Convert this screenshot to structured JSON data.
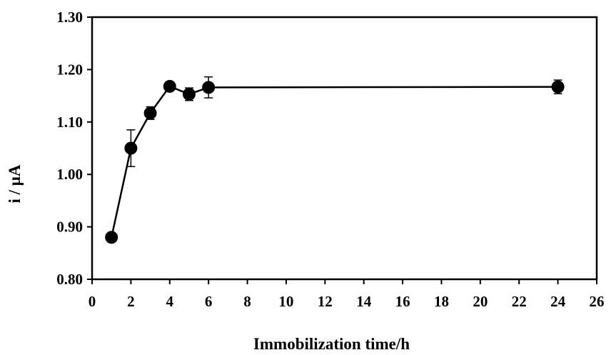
{
  "chart_data": {
    "type": "line",
    "title": "",
    "xlabel": "Immobilization time/h",
    "ylabel": "i / μA",
    "xlim": [
      0,
      26
    ],
    "ylim": [
      0.8,
      1.3
    ],
    "x_ticks": [
      "0",
      "2",
      "4",
      "6",
      "8",
      "10",
      "12",
      "14",
      "16",
      "18",
      "20",
      "22",
      "24",
      "26"
    ],
    "y_ticks": [
      "0.80",
      "0.90",
      "1.00",
      "1.10",
      "1.20",
      "1.30"
    ],
    "grid": false,
    "legend": "none",
    "series": [
      {
        "x": [
          1,
          2,
          3,
          4,
          5,
          6,
          24
        ],
        "y": [
          0.88,
          1.05,
          1.117,
          1.168,
          1.153,
          1.166,
          1.167
        ],
        "error": [
          0.008,
          0.035,
          0.012,
          0.005,
          0.012,
          0.02,
          0.013
        ],
        "color": "#000000",
        "marker": "circle"
      }
    ]
  }
}
